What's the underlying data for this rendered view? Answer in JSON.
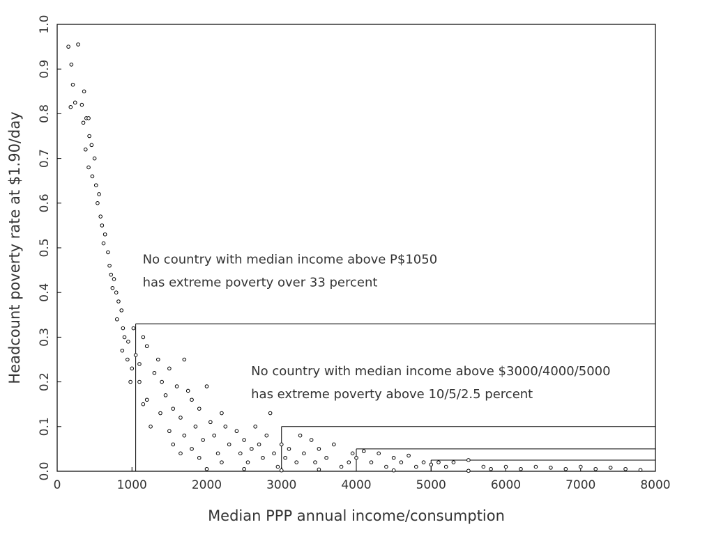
{
  "chart_data": {
    "type": "scatter",
    "y_label": "Headcount poverty rate at $1.90/day",
    "x_label": "Median PPP annual income/consumption",
    "annotations": [
      {
        "lines": [
          "No country with median income above P$1050",
          "has extreme poverty over 33 percent"
        ],
        "x": 1050,
        "y": 0.46
      },
      {
        "lines": [
          "No country with median income above $3000/4000/5000",
          "has extreme poverty above 10/5/2.5 percent"
        ],
        "x": 2500,
        "y": 0.21
      }
    ],
    "reference_lines": [
      {
        "x": 1050,
        "y": 0.33
      },
      {
        "x": 3000,
        "y": 0.1
      },
      {
        "x": 4000,
        "y": 0.05
      },
      {
        "x": 5000,
        "y": 0.025
      }
    ],
    "xlim": [
      0,
      8000
    ],
    "ylim": [
      0,
      1
    ],
    "xticks": [
      0,
      1000,
      2000,
      3000,
      4000,
      5000,
      6000,
      7000,
      8000
    ],
    "yticks": [
      {
        "value": 0,
        "label": "0.0"
      },
      0.1,
      0.2,
      0.3,
      0.4,
      0.5,
      0.6,
      0.7,
      0.8,
      0.9,
      {
        "value": 1,
        "label": "1.0"
      }
    ],
    "color": "#000000",
    "x": [
      150,
      280,
      190,
      210,
      180,
      240,
      330,
      360,
      390,
      350,
      420,
      430,
      380,
      460,
      420,
      500,
      470,
      520,
      560,
      540,
      580,
      600,
      640,
      620,
      680,
      700,
      720,
      760,
      740,
      790,
      820,
      860,
      800,
      880,
      900,
      950,
      870,
      940,
      1000,
      980,
      1020,
      1050,
      1100,
      1150,
      1200,
      1100,
      1200,
      1150,
      1300,
      1250,
      1350,
      1400,
      1450,
      1500,
      1380,
      1500,
      1550,
      1600,
      1650,
      1700,
      1550,
      1650,
      1750,
      1800,
      1850,
      1700,
      1800,
      1900,
      1950,
      2000,
      2050,
      1900,
      2100,
      2150,
      2200,
      2250,
      2300,
      2200,
      2400,
      2450,
      2500,
      2550,
      2600,
      2700,
      2650,
      2750,
      2800,
      2850,
      2900,
      2950,
      3000,
      3050,
      3100,
      3200,
      3250,
      3300,
      3400,
      3450,
      3500,
      3600,
      3700,
      3800,
      3900,
      3950,
      4000,
      4100,
      4200,
      4300,
      4400,
      4500,
      4600,
      4700,
      4800,
      4900,
      5000,
      5100,
      5200,
      5300,
      5500,
      5700,
      5800,
      6000,
      6200,
      6400,
      6600,
      6800,
      7000,
      7200,
      7400,
      7600,
      7800,
      2000,
      2500,
      3000,
      3500,
      4500,
      5500
    ],
    "values": [
      0.95,
      0.955,
      0.91,
      0.865,
      0.815,
      0.825,
      0.82,
      0.85,
      0.79,
      0.78,
      0.79,
      0.75,
      0.72,
      0.73,
      0.68,
      0.7,
      0.66,
      0.64,
      0.62,
      0.6,
      0.57,
      0.55,
      0.53,
      0.51,
      0.49,
      0.46,
      0.44,
      0.43,
      0.41,
      0.4,
      0.38,
      0.36,
      0.34,
      0.32,
      0.3,
      0.29,
      0.27,
      0.25,
      0.23,
      0.2,
      0.32,
      0.26,
      0.24,
      0.3,
      0.28,
      0.2,
      0.16,
      0.15,
      0.22,
      0.1,
      0.25,
      0.2,
      0.17,
      0.23,
      0.13,
      0.09,
      0.14,
      0.19,
      0.12,
      0.25,
      0.06,
      0.04,
      0.18,
      0.16,
      0.1,
      0.08,
      0.05,
      0.14,
      0.07,
      0.19,
      0.11,
      0.03,
      0.08,
      0.04,
      0.13,
      0.1,
      0.06,
      0.02,
      0.09,
      0.04,
      0.07,
      0.02,
      0.05,
      0.06,
      0.1,
      0.03,
      0.08,
      0.13,
      0.04,
      0.01,
      0.06,
      0.03,
      0.05,
      0.02,
      0.08,
      0.04,
      0.07,
      0.02,
      0.05,
      0.03,
      0.06,
      0.01,
      0.02,
      0.04,
      0.03,
      0.045,
      0.02,
      0.04,
      0.01,
      0.03,
      0.02,
      0.035,
      0.01,
      0.02,
      0.015,
      0.02,
      0.01,
      0.02,
      0.025,
      0.01,
      0.005,
      0.01,
      0.005,
      0.01,
      0.008,
      0.005,
      0.01,
      0.005,
      0.008,
      0.005,
      0.003,
      0.005,
      0.005,
      0.002,
      0.004,
      0.002,
      0.001
    ]
  }
}
